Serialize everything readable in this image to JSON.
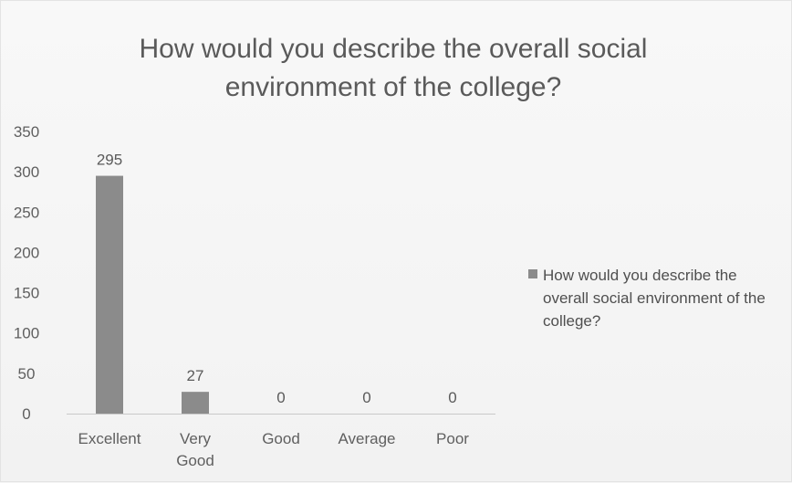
{
  "chart_data": {
    "type": "bar",
    "title_line1": "How would you describe the overall social",
    "title_line2": "environment of the college?",
    "categories": [
      "Excellent",
      "Very Good",
      "Good",
      "Average",
      "Poor"
    ],
    "category_lines": [
      [
        "Excellent"
      ],
      [
        "Very",
        "Good"
      ],
      [
        "Good"
      ],
      [
        "Average"
      ],
      [
        "Poor"
      ]
    ],
    "series": [
      {
        "name": "How would you describe the overall social environment of the college?",
        "values": [
          295,
          27,
          0,
          0,
          0
        ],
        "color": "#8b8b8b"
      }
    ],
    "ylim": [
      0,
      350
    ],
    "y_ticks": [
      0,
      50,
      100,
      150,
      200,
      250,
      300,
      350
    ],
    "grid": false,
    "legend_position": "right",
    "data_labels": true
  }
}
